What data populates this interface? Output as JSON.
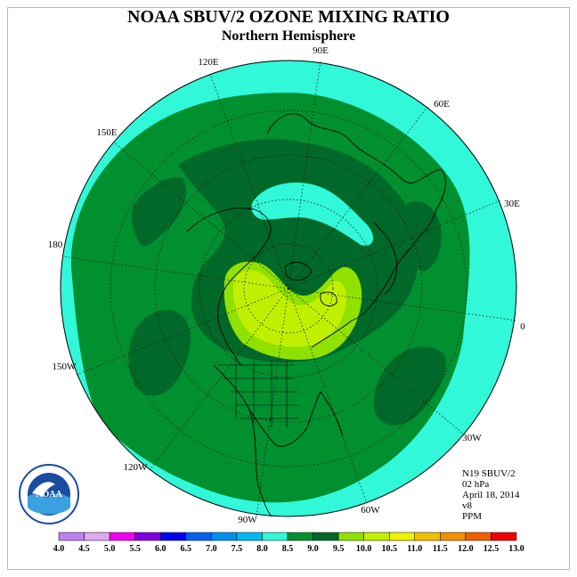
{
  "title": "NOAA SBUV/2 OZONE MIXING RATIO",
  "subtitle": "Northern Hemisphere",
  "longitude_labels": [
    "90E",
    "60E",
    "30E",
    "0",
    "30W",
    "60W",
    "90W",
    "120W",
    "150W",
    "180",
    "150E",
    "120E"
  ],
  "info": {
    "instrument": "N19 SBUV/2",
    "level": "02 hPa",
    "date": "April 18, 2014",
    "version": "v8",
    "units": "PPM"
  },
  "colorbar": {
    "labels": [
      "4.0",
      "4.5",
      "5.0",
      "5.5",
      "6.0",
      "6.5",
      "7.0",
      "7.5",
      "8.0",
      "8.5",
      "9.0",
      "9.5",
      "10.0",
      "10.5",
      "11.0",
      "11.5",
      "12.0",
      "12.5",
      "13.0"
    ],
    "colors": [
      "#c080f0",
      "#e0a8f0",
      "#f000f0",
      "#8000e0",
      "#0000f0",
      "#0060f0",
      "#0090f0",
      "#00b8f0",
      "#30f8d8",
      "#009030",
      "#006828",
      "#90e000",
      "#c0f000",
      "#f0f000",
      "#f0c000",
      "#f09000",
      "#f06000",
      "#f00000",
      "#a06040"
    ]
  },
  "logo": {
    "text": "NOAA",
    "ring_text": "NATIONAL OCEANIC AND ATMOSPHERIC ADMINISTRATION · U.S. DEPARTMENT OF COMMERCE"
  },
  "colors": {
    "cyan": "#30f8d8",
    "green": "#009030",
    "dark_green": "#006828",
    "yellow_green": "#90e000",
    "lime": "#c0f000"
  }
}
